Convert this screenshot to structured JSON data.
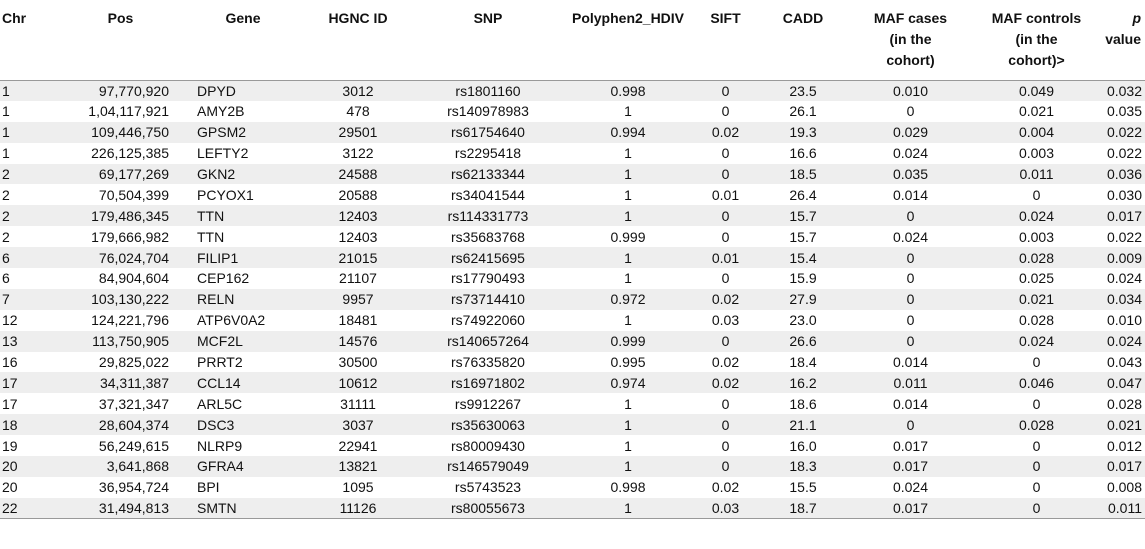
{
  "headers": {
    "chr": "Chr",
    "pos": "Pos",
    "gene": "Gene",
    "hgnc": "HGNC ID",
    "snp": "SNP",
    "polyphen": "Polyphen2_HDIV",
    "sift": "SIFT",
    "cadd": "CADD",
    "maf_cases_l1": "MAF cases",
    "maf_cases_l2": "(in the",
    "maf_cases_l3": "cohort)",
    "maf_controls_l1": "MAF controls",
    "maf_controls_l2": "(in the",
    "maf_controls_l3": "cohort)>",
    "p_l1": "p",
    "p_l2": "value"
  },
  "rows": [
    {
      "chr": "1",
      "pos": "97,770,920",
      "gene": "DPYD",
      "hgnc": "3012",
      "snp": "rs1801160",
      "polyphen": "0.998",
      "sift": "0",
      "cadd": "23.5",
      "maf_cases": "0.010",
      "maf_controls": "0.049",
      "p": "0.032"
    },
    {
      "chr": "1",
      "pos": "1,04,117,921",
      "gene": "AMY2B",
      "hgnc": "478",
      "snp": "rs140978983",
      "polyphen": "1",
      "sift": "0",
      "cadd": "26.1",
      "maf_cases": "0",
      "maf_controls": "0.021",
      "p": "0.035"
    },
    {
      "chr": "1",
      "pos": "109,446,750",
      "gene": "GPSM2",
      "hgnc": "29501",
      "snp": "rs61754640",
      "polyphen": "0.994",
      "sift": "0.02",
      "cadd": "19.3",
      "maf_cases": "0.029",
      "maf_controls": "0.004",
      "p": "0.022"
    },
    {
      "chr": "1",
      "pos": "226,125,385",
      "gene": "LEFTY2",
      "hgnc": "3122",
      "snp": "rs2295418",
      "polyphen": "1",
      "sift": "0",
      "cadd": "16.6",
      "maf_cases": "0.024",
      "maf_controls": "0.003",
      "p": "0.022"
    },
    {
      "chr": "2",
      "pos": "69,177,269",
      "gene": "GKN2",
      "hgnc": "24588",
      "snp": "rs62133344",
      "polyphen": "1",
      "sift": "0",
      "cadd": "18.5",
      "maf_cases": "0.035",
      "maf_controls": "0.011",
      "p": "0.036"
    },
    {
      "chr": "2",
      "pos": "70,504,399",
      "gene": "PCYOX1",
      "hgnc": "20588",
      "snp": "rs34041544",
      "polyphen": "1",
      "sift": "0.01",
      "cadd": "26.4",
      "maf_cases": "0.014",
      "maf_controls": "0",
      "p": "0.030"
    },
    {
      "chr": "2",
      "pos": "179,486,345",
      "gene": "TTN",
      "hgnc": "12403",
      "snp": "rs114331773",
      "polyphen": "1",
      "sift": "0",
      "cadd": "15.7",
      "maf_cases": "0",
      "maf_controls": "0.024",
      "p": "0.017"
    },
    {
      "chr": "2",
      "pos": "179,666,982",
      "gene": "TTN",
      "hgnc": "12403",
      "snp": "rs35683768",
      "polyphen": "0.999",
      "sift": "0",
      "cadd": "15.7",
      "maf_cases": "0.024",
      "maf_controls": "0.003",
      "p": "0.022"
    },
    {
      "chr": "6",
      "pos": "76,024,704",
      "gene": "FILIP1",
      "hgnc": "21015",
      "snp": "rs62415695",
      "polyphen": "1",
      "sift": "0.01",
      "cadd": "15.4",
      "maf_cases": "0",
      "maf_controls": "0.028",
      "p": "0.009"
    },
    {
      "chr": "6",
      "pos": "84,904,604",
      "gene": "CEP162",
      "hgnc": "21107",
      "snp": "rs17790493",
      "polyphen": "1",
      "sift": "0",
      "cadd": "15.9",
      "maf_cases": "0",
      "maf_controls": "0.025",
      "p": "0.024"
    },
    {
      "chr": "7",
      "pos": "103,130,222",
      "gene": "RELN",
      "hgnc": "9957",
      "snp": "rs73714410",
      "polyphen": "0.972",
      "sift": "0.02",
      "cadd": "27.9",
      "maf_cases": "0",
      "maf_controls": "0.021",
      "p": "0.034"
    },
    {
      "chr": "12",
      "pos": "124,221,796",
      "gene": "ATP6V0A2",
      "hgnc": "18481",
      "snp": "rs74922060",
      "polyphen": "1",
      "sift": "0.03",
      "cadd": "23.0",
      "maf_cases": "0",
      "maf_controls": "0.028",
      "p": "0.010"
    },
    {
      "chr": "13",
      "pos": "113,750,905",
      "gene": "MCF2L",
      "hgnc": "14576",
      "snp": "rs140657264",
      "polyphen": "0.999",
      "sift": "0",
      "cadd": "26.6",
      "maf_cases": "0",
      "maf_controls": "0.024",
      "p": "0.024"
    },
    {
      "chr": "16",
      "pos": "29,825,022",
      "gene": "PRRT2",
      "hgnc": "30500",
      "snp": "rs76335820",
      "polyphen": "0.995",
      "sift": "0.02",
      "cadd": "18.4",
      "maf_cases": "0.014",
      "maf_controls": "0",
      "p": "0.043"
    },
    {
      "chr": "17",
      "pos": "34,311,387",
      "gene": "CCL14",
      "hgnc": "10612",
      "snp": "rs16971802",
      "polyphen": "0.974",
      "sift": "0.02",
      "cadd": "16.2",
      "maf_cases": "0.011",
      "maf_controls": "0.046",
      "p": "0.047"
    },
    {
      "chr": "17",
      "pos": "37,321,347",
      "gene": "ARL5C",
      "hgnc": "31111",
      "snp": "rs9912267",
      "polyphen": "1",
      "sift": "0",
      "cadd": "18.6",
      "maf_cases": "0.014",
      "maf_controls": "0",
      "p": "0.028"
    },
    {
      "chr": "18",
      "pos": "28,604,374",
      "gene": "DSC3",
      "hgnc": "3037",
      "snp": "rs35630063",
      "polyphen": "1",
      "sift": "0",
      "cadd": "21.1",
      "maf_cases": "0",
      "maf_controls": "0.028",
      "p": "0.021"
    },
    {
      "chr": "19",
      "pos": "56,249,615",
      "gene": "NLRP9",
      "hgnc": "22941",
      "snp": "rs80009430",
      "polyphen": "1",
      "sift": "0",
      "cadd": "16.0",
      "maf_cases": "0.017",
      "maf_controls": "0",
      "p": "0.012"
    },
    {
      "chr": "20",
      "pos": "3,641,868",
      "gene": "GFRA4",
      "hgnc": "13821",
      "snp": "rs146579049",
      "polyphen": "1",
      "sift": "0",
      "cadd": "18.3",
      "maf_cases": "0.017",
      "maf_controls": "0",
      "p": "0.017"
    },
    {
      "chr": "20",
      "pos": "36,954,724",
      "gene": "BPI",
      "hgnc": "1095",
      "snp": "rs5743523",
      "polyphen": "0.998",
      "sift": "0.02",
      "cadd": "15.5",
      "maf_cases": "0.024",
      "maf_controls": "0",
      "p": "0.008"
    },
    {
      "chr": "22",
      "pos": "31,494,813",
      "gene": "SMTN",
      "hgnc": "11126",
      "snp": "rs80055673",
      "polyphen": "1",
      "sift": "0.03",
      "cadd": "18.7",
      "maf_cases": "0.017",
      "maf_controls": "0",
      "p": "0.011"
    }
  ]
}
